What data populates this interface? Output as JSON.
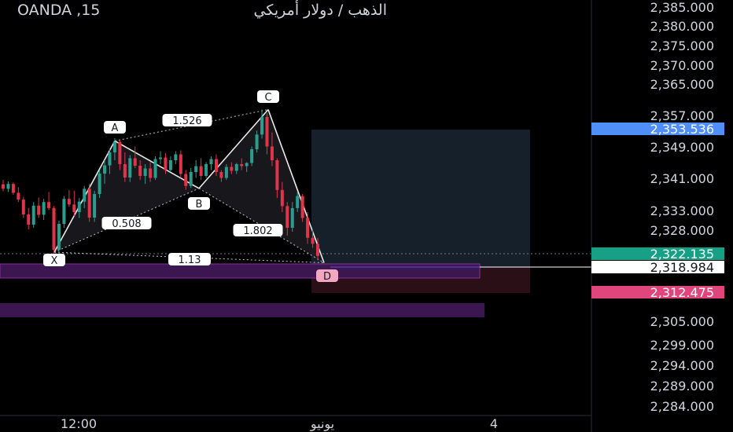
{
  "header": {
    "symbol": "OANDA ,15",
    "name": "الذهب / دولار أمريكي"
  },
  "colors": {
    "background": "#000000",
    "up": "#2a9d8f",
    "down": "#e0344b",
    "pattern_fill": "#1b1b1f",
    "pattern_line": "#e9e9e9",
    "target_zone": "#16202b",
    "stop_zone": "#2a1016",
    "band": "#3b1650",
    "band_edge": "#8a2e9a",
    "price_blue": "#4f8ff7",
    "price_green": "#16a085",
    "price_pink": "#e0457b",
    "axis_text": "#d1d4dc"
  },
  "chart_data": {
    "type": "candlestick",
    "y_axis": {
      "ticks": [
        2385,
        2380,
        2375,
        2370,
        2365,
        2357,
        2349,
        2341,
        2333,
        2328,
        2305,
        2299,
        2294,
        2289,
        2284
      ],
      "tick_labels": [
        "2,385.000",
        "2,380.000",
        "2,375.000",
        "2,370.000",
        "2,365.000",
        "2,357.000",
        "2,349.000",
        "2,341.000",
        "2,333.000",
        "2,328.000",
        "2,305.000",
        "2,299.000",
        "2,294.000",
        "2,289.000",
        "2,284.000"
      ]
    },
    "x_axis": {
      "tick_labels": [
        "12:00",
        "يونيو",
        "4"
      ]
    },
    "price_labels": [
      {
        "value": 2353.536,
        "label": "2,353.536",
        "style": "blue"
      },
      {
        "value": 2322.135,
        "label": "2,322.135",
        "style": "green"
      },
      {
        "value": 2318.984,
        "label": "2,318.984",
        "style": "white"
      },
      {
        "value": 2312.475,
        "label": "2,312.475",
        "style": "pink"
      }
    ],
    "harmonic_pattern": {
      "points": [
        {
          "label": "X",
          "price": 2322.5
        },
        {
          "label": "A",
          "price": 2350.5
        },
        {
          "label": "B",
          "price": 2338.5
        },
        {
          "label": "C",
          "price": 2358.5
        },
        {
          "label": "D",
          "price": 2320.0
        }
      ],
      "ratios": [
        "1.526",
        "0.508",
        "1.802",
        "1.13"
      ]
    },
    "candles": [
      [
        2339.5,
        2340.6,
        2337.8,
        2338.4
      ],
      [
        2338.4,
        2340.2,
        2337.6,
        2339.6
      ],
      [
        2339.6,
        2340.0,
        2336.9,
        2337.4
      ],
      [
        2337.4,
        2338.8,
        2335.1,
        2335.7
      ],
      [
        2335.7,
        2336.4,
        2331.1,
        2332.0
      ],
      [
        2332.0,
        2333.6,
        2328.2,
        2329.4
      ],
      [
        2329.4,
        2335.1,
        2328.6,
        2334.2
      ],
      [
        2334.2,
        2336.2,
        2331.1,
        2331.9
      ],
      [
        2331.9,
        2335.9,
        2330.6,
        2335.1
      ],
      [
        2335.1,
        2337.6,
        2333.1,
        2333.6
      ],
      [
        2333.6,
        2334.1,
        2321.6,
        2323.1
      ],
      [
        2323.1,
        2330.4,
        2322.1,
        2329.6
      ],
      [
        2329.6,
        2336.6,
        2328.6,
        2335.9
      ],
      [
        2335.9,
        2338.1,
        2333.9,
        2334.5
      ],
      [
        2334.5,
        2337.9,
        2331.6,
        2332.6
      ],
      [
        2332.6,
        2336.1,
        2331.1,
        2335.2
      ],
      [
        2335.2,
        2339.1,
        2333.6,
        2338.4
      ],
      [
        2338.4,
        2339.6,
        2330.1,
        2331.2
      ],
      [
        2331.2,
        2337.9,
        2330.1,
        2337.1
      ],
      [
        2337.1,
        2343.1,
        2336.1,
        2342.2
      ],
      [
        2342.2,
        2345.6,
        2339.6,
        2344.3
      ],
      [
        2344.3,
        2348.6,
        2342.1,
        2347.6
      ],
      [
        2347.6,
        2351.2,
        2345.6,
        2350.2
      ],
      [
        2350.2,
        2350.6,
        2343.1,
        2344.6
      ],
      [
        2344.6,
        2347.6,
        2340.1,
        2341.2
      ],
      [
        2341.2,
        2346.9,
        2340.1,
        2346.1
      ],
      [
        2346.1,
        2349.1,
        2343.6,
        2344.2
      ],
      [
        2344.2,
        2345.6,
        2340.6,
        2341.6
      ],
      [
        2341.6,
        2344.6,
        2339.6,
        2343.5
      ],
      [
        2343.5,
        2345.1,
        2340.1,
        2341.1
      ],
      [
        2341.1,
        2346.6,
        2340.6,
        2345.9
      ],
      [
        2345.9,
        2347.9,
        2344.6,
        2346.3
      ],
      [
        2346.3,
        2347.4,
        2342.1,
        2343.1
      ],
      [
        2343.1,
        2346.6,
        2342.6,
        2345.6
      ],
      [
        2345.6,
        2347.9,
        2344.6,
        2347.1
      ],
      [
        2347.1,
        2348.1,
        2341.1,
        2342.1
      ],
      [
        2342.1,
        2343.1,
        2338.1,
        2339.1
      ],
      [
        2339.1,
        2343.6,
        2338.6,
        2342.6
      ],
      [
        2342.6,
        2345.6,
        2341.1,
        2344.1
      ],
      [
        2344.1,
        2346.1,
        2340.6,
        2341.6
      ],
      [
        2341.6,
        2345.1,
        2341.1,
        2344.6
      ],
      [
        2344.6,
        2346.6,
        2343.1,
        2345.9
      ],
      [
        2345.9,
        2347.1,
        2341.6,
        2342.6
      ],
      [
        2342.6,
        2343.1,
        2340.1,
        2341.1
      ],
      [
        2341.1,
        2344.6,
        2340.6,
        2343.9
      ],
      [
        2343.9,
        2345.1,
        2342.1,
        2342.9
      ],
      [
        2342.9,
        2344.9,
        2342.1,
        2344.6
      ],
      [
        2344.6,
        2346.1,
        2343.1,
        2344.1
      ],
      [
        2344.1,
        2345.1,
        2342.6,
        2344.9
      ],
      [
        2344.9,
        2349.1,
        2344.1,
        2348.4
      ],
      [
        2348.4,
        2353.1,
        2347.6,
        2352.1
      ],
      [
        2352.1,
        2358.5,
        2351.1,
        2356.6
      ],
      [
        2356.6,
        2357.6,
        2347.1,
        2349.1
      ],
      [
        2349.1,
        2352.6,
        2344.1,
        2345.6
      ],
      [
        2345.6,
        2346.1,
        2336.1,
        2338.1
      ],
      [
        2338.1,
        2340.1,
        2332.6,
        2334.1
      ],
      [
        2334.1,
        2335.1,
        2326.6,
        2328.6
      ],
      [
        2328.6,
        2335.1,
        2327.6,
        2333.6
      ],
      [
        2333.6,
        2337.6,
        2332.6,
        2336.6
      ],
      [
        2336.6,
        2337.1,
        2330.1,
        2331.1
      ],
      [
        2331.1,
        2332.6,
        2324.6,
        2326.1
      ],
      [
        2326.1,
        2328.1,
        2323.6,
        2324.6
      ],
      [
        2324.6,
        2326.1,
        2320.6,
        2321.6
      ]
    ]
  }
}
